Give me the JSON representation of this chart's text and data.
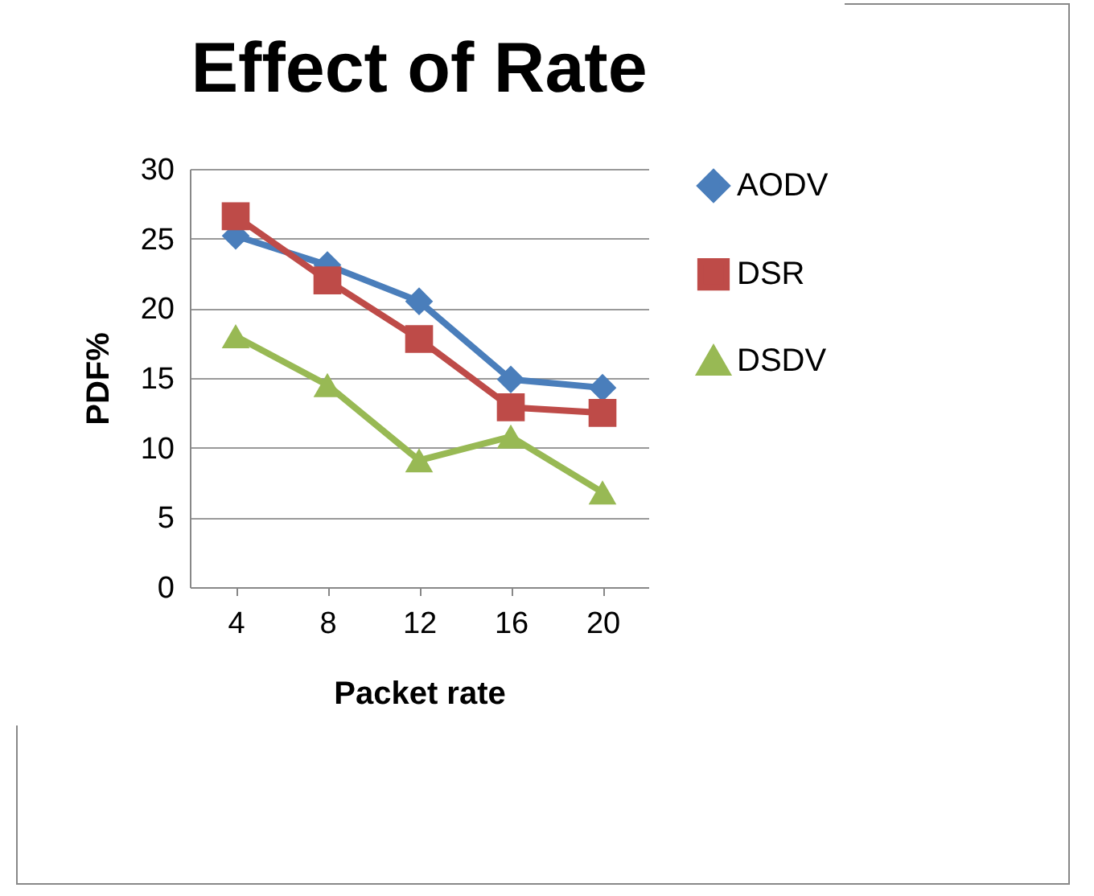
{
  "chart_data": {
    "type": "line",
    "title": "Effect of Rate",
    "xlabel": "Packet rate",
    "ylabel": "PDF%",
    "categories": [
      "4",
      "8",
      "12",
      "16",
      "20"
    ],
    "series": [
      {
        "name": "AODV",
        "color": "#4a7ebb",
        "marker": "diamond",
        "values": [
          25.2,
          23.1,
          20.5,
          14.9,
          14.3
        ]
      },
      {
        "name": "DSR",
        "color": "#be4b48",
        "marker": "square",
        "values": [
          26.6,
          22,
          17.8,
          12.9,
          12.5
        ]
      },
      {
        "name": "DSDV",
        "color": "#98b954",
        "marker": "triangle",
        "values": [
          18,
          14.5,
          9.1,
          10.8,
          6.8
        ]
      }
    ],
    "ylim": [
      0,
      30
    ],
    "yticks": [
      0,
      5,
      10,
      15,
      20,
      25,
      30
    ],
    "grid": "y",
    "legend": "right"
  }
}
